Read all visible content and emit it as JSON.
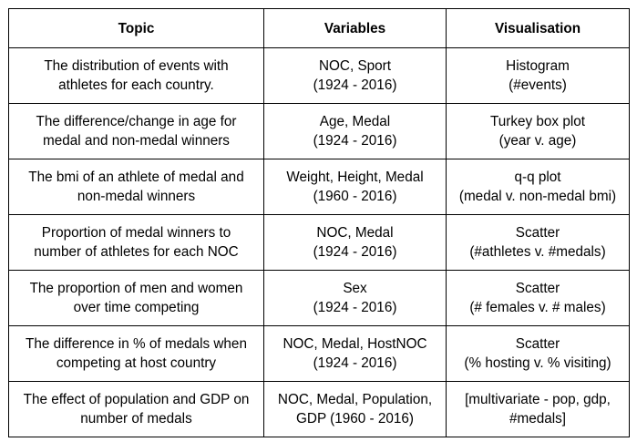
{
  "table": {
    "headers": [
      "Topic",
      "Variables",
      "Visualisation"
    ],
    "rows": [
      {
        "topic": [
          "The distribution of events with",
          "athletes for each country."
        ],
        "variables": [
          "NOC, Sport",
          "(1924 - 2016)"
        ],
        "visualisation": [
          "Histogram",
          "(#events)"
        ]
      },
      {
        "topic": [
          "The difference/change in age for",
          "medal and non-medal winners"
        ],
        "variables": [
          "Age, Medal",
          "(1924 - 2016)"
        ],
        "visualisation": [
          "Turkey box plot",
          "(year v. age)"
        ]
      },
      {
        "topic": [
          "The bmi of an athlete of medal and",
          "non-medal winners"
        ],
        "variables": [
          "Weight, Height, Medal",
          "(1960 - 2016)"
        ],
        "visualisation": [
          "q-q plot",
          "(medal v. non-medal bmi)"
        ]
      },
      {
        "topic": [
          "Proportion of medal winners to",
          "number of athletes for each NOC"
        ],
        "variables": [
          "NOC, Medal",
          "(1924 - 2016)"
        ],
        "visualisation": [
          "Scatter",
          "(#athletes v. #medals)"
        ]
      },
      {
        "topic": [
          "The proportion of men and women",
          "over time competing"
        ],
        "variables": [
          "Sex",
          "(1924 - 2016)"
        ],
        "visualisation": [
          "Scatter",
          "(# females v. # males)"
        ]
      },
      {
        "topic": [
          "The difference in % of medals when",
          "competing at host country"
        ],
        "variables": [
          "NOC, Medal, HostNOC",
          "(1924 - 2016)"
        ],
        "visualisation": [
          "Scatter",
          "(% hosting v. % visiting)"
        ]
      },
      {
        "topic": [
          "The effect of population and GDP on",
          "number of medals"
        ],
        "variables": [
          "NOC, Medal, Population,",
          "GDP (1960 - 2016)"
        ],
        "visualisation": [
          "[multivariate - pop, gdp,",
          "#medals]"
        ]
      }
    ]
  }
}
